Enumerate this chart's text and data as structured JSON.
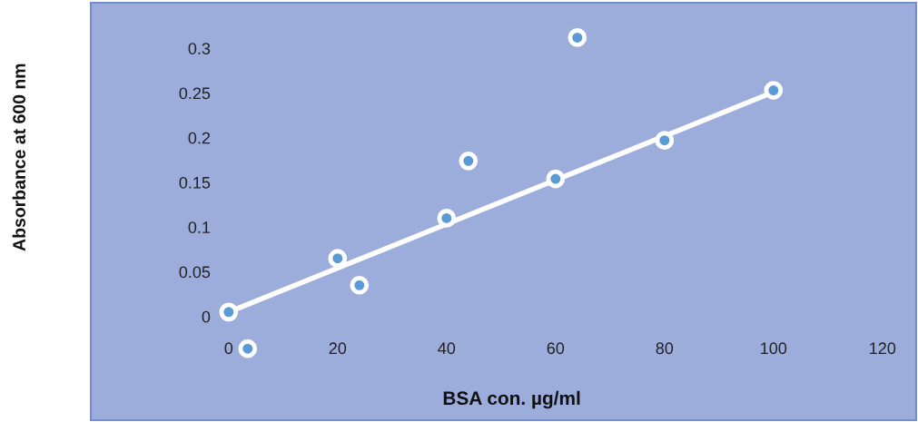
{
  "chart_data": {
    "type": "scatter",
    "xlabel": "BSA con. µg/ml",
    "ylabel": "Absorbance at 600 nm",
    "xlim": [
      -25.3,
      126.2
    ],
    "ylim": [
      -0.116,
      0.351
    ],
    "xticks": [
      0,
      20,
      40,
      60,
      80,
      100,
      120
    ],
    "yticks": [
      0,
      0.05,
      0.1,
      0.15,
      0.2,
      0.25,
      0.3
    ],
    "grid": false,
    "series": [
      {
        "type": "line",
        "color": "#ffffff",
        "x": [
          0,
          100
        ],
        "values": [
          0.005,
          0.251
        ],
        "line_style": "solid",
        "marker": "none"
      },
      {
        "color": "#5b9bd5",
        "marker": "circle",
        "x": [
          0,
          3.5,
          20,
          24,
          40,
          44,
          60,
          64,
          80,
          100
        ],
        "values": [
          0.005,
          -0.036,
          0.065,
          0.035,
          0.11,
          0.174,
          0.154,
          0.312,
          0.197,
          0.253
        ]
      }
    ]
  }
}
